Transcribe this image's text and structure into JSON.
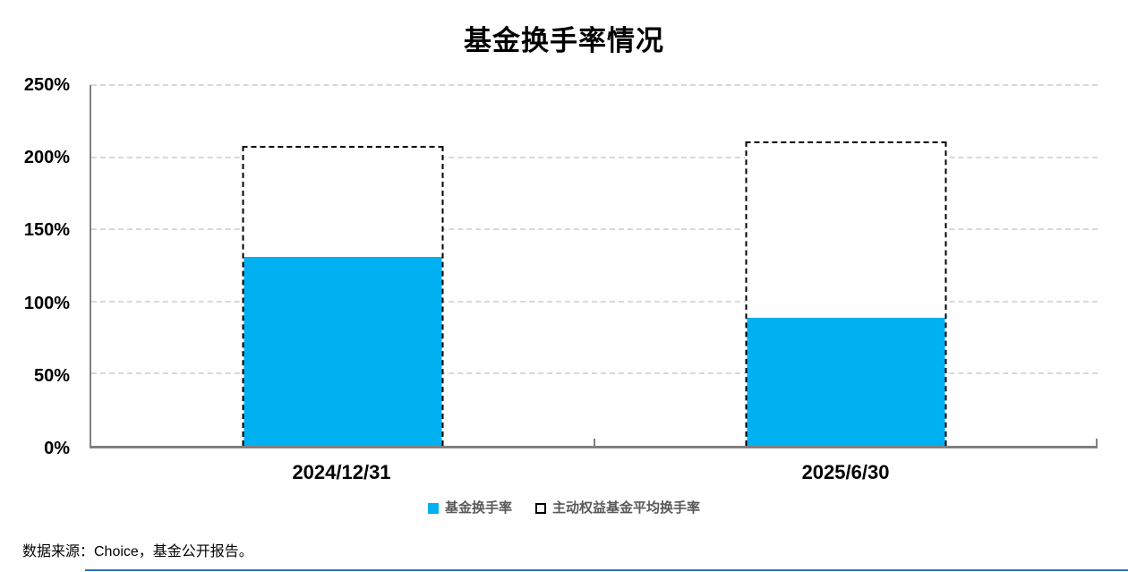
{
  "page": {
    "source_note": "数据来源：Choice，基金公开报告。"
  },
  "chart_data": {
    "type": "bar",
    "title": "基金换手率情况",
    "categories": [
      "2024/12/31",
      "2025/6/30"
    ],
    "series": [
      {
        "name": "基金换手率",
        "values": [
          131,
          89
        ],
        "style": "solid_fill",
        "color": "#00B0F0"
      },
      {
        "name": "主动权益基金平均换手率",
        "values": [
          208,
          211
        ],
        "style": "dashed_outline",
        "fill": "#FFFFFF",
        "border_color": "#000000"
      }
    ],
    "xlabel": "",
    "ylabel": "",
    "ylim": [
      0,
      250
    ],
    "yticks": [
      0,
      50,
      100,
      150,
      200,
      250
    ],
    "ytick_labels": [
      "0%",
      "50%",
      "100%",
      "150%",
      "200%",
      "250%"
    ],
    "grid": "horizontal_dashed",
    "legend_position": "bottom",
    "colors": {
      "bar_fill": "#00B0F0",
      "dashed_border": "#000000",
      "gridline": "#D9D9D9",
      "axis": "#808080",
      "legend_text": "#595959",
      "title_text": "#000000",
      "bottom_rule": "#2E75B6"
    }
  }
}
